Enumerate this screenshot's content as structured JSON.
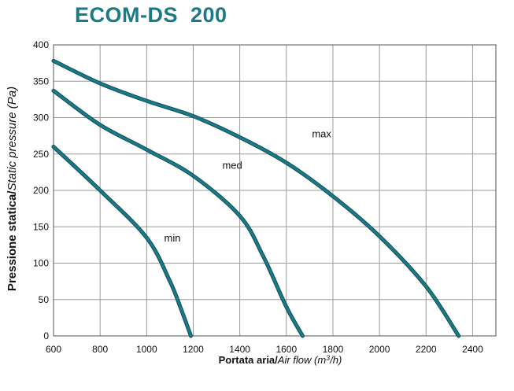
{
  "title": "ECOM-DS  200",
  "chart_data": {
    "type": "line",
    "title": "ECOM-DS  200",
    "ylabel_bold": "Pressione statica/",
    "ylabel_italic": "Static pressure (Pa)",
    "xlabel_bold": "Portata aria/",
    "xlabel_italic": "Air flow (m",
    "xlabel_sup": "3",
    "xlabel_end": "/h)",
    "xlim": [
      600,
      2500
    ],
    "ylim": [
      0,
      400
    ],
    "x_ticks": [
      600,
      800,
      1000,
      1200,
      1400,
      1600,
      1800,
      2000,
      2200,
      2400
    ],
    "x_tick_labels": [
      "600",
      "800",
      "1000",
      "1200",
      "1400",
      "1600",
      "1800",
      "2000",
      "2200",
      "2400"
    ],
    "y_ticks": [
      0,
      50,
      100,
      150,
      200,
      250,
      300,
      350,
      400
    ],
    "y_tick_labels": [
      "0",
      "50",
      "100",
      "150",
      "200",
      "250",
      "300",
      "350",
      "400"
    ],
    "grid": true,
    "line_color": "#1a7a86",
    "series": [
      {
        "name": "max",
        "x": [
          600,
          800,
          1000,
          1200,
          1400,
          1600,
          1800,
          2000,
          2200,
          2340
        ],
        "y": [
          378,
          347,
          323,
          302,
          273,
          238,
          192,
          137,
          68,
          0
        ],
        "label_at": [
          1710,
          273
        ]
      },
      {
        "name": "med",
        "x": [
          600,
          800,
          1000,
          1200,
          1400,
          1500,
          1600,
          1670
        ],
        "y": [
          337,
          290,
          256,
          220,
          165,
          110,
          40,
          0
        ],
        "label_at": [
          1325,
          230
        ]
      },
      {
        "name": "min",
        "x": [
          600,
          800,
          1000,
          1100,
          1150,
          1190
        ],
        "y": [
          260,
          200,
          135,
          75,
          35,
          0
        ],
        "label_at": [
          1075,
          130
        ]
      }
    ]
  }
}
